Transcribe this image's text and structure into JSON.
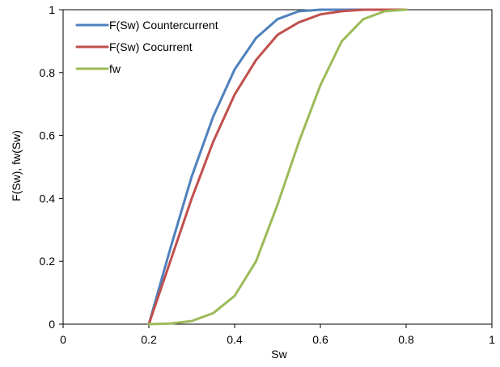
{
  "chart_data": {
    "type": "line",
    "title": "",
    "xlabel": "Sw",
    "ylabel": "F(Sw), fw(Sw)",
    "xlim": [
      0,
      1
    ],
    "ylim": [
      0,
      1
    ],
    "x_ticks": [
      0,
      0.2,
      0.4,
      0.6,
      0.8,
      1
    ],
    "y_ticks": [
      0,
      0.2,
      0.4,
      0.6,
      0.8,
      1
    ],
    "x_tick_labels": [
      "0",
      "0.2",
      "0.4",
      "0.6",
      "0.8",
      "1"
    ],
    "y_tick_labels": [
      "0",
      "0.2",
      "0.4",
      "0.6",
      "0.8",
      "1"
    ],
    "grid": false,
    "legend_position": "top-left",
    "series": [
      {
        "name": "F(Sw) Countercurrent",
        "color": "#4F81BD",
        "x": [
          0.2,
          0.25,
          0.3,
          0.35,
          0.4,
          0.45,
          0.5,
          0.55,
          0.6,
          0.65,
          0.7,
          0.75,
          0.8
        ],
        "y": [
          0.0,
          0.24,
          0.47,
          0.66,
          0.81,
          0.91,
          0.97,
          0.995,
          1.0,
          1.0,
          1.0,
          1.0,
          1.0
        ]
      },
      {
        "name": "F(Sw) Cocurrent",
        "color": "#C0504D",
        "x": [
          0.2,
          0.25,
          0.3,
          0.35,
          0.4,
          0.45,
          0.5,
          0.55,
          0.6,
          0.65,
          0.7,
          0.75,
          0.8
        ],
        "y": [
          0.0,
          0.2,
          0.4,
          0.58,
          0.73,
          0.84,
          0.92,
          0.96,
          0.985,
          0.995,
          1.0,
          1.0,
          1.0
        ]
      },
      {
        "name": "fw",
        "color": "#9BBB59",
        "x": [
          0.2,
          0.25,
          0.3,
          0.35,
          0.4,
          0.45,
          0.5,
          0.55,
          0.6,
          0.65,
          0.7,
          0.75,
          0.8
        ],
        "y": [
          0.0,
          0.002,
          0.01,
          0.035,
          0.09,
          0.2,
          0.38,
          0.58,
          0.76,
          0.9,
          0.97,
          0.995,
          1.0
        ]
      }
    ]
  }
}
